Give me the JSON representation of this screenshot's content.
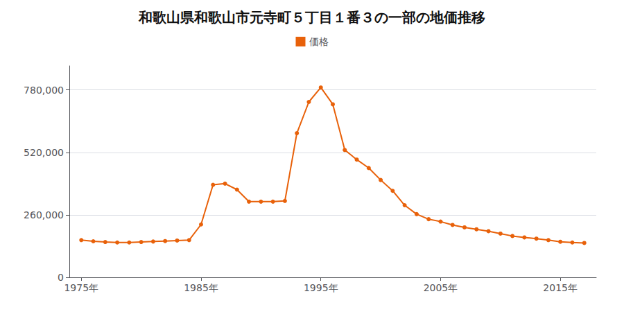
{
  "chart_data": {
    "type": "line",
    "title": "和歌山県和歌山市元寺町５丁目１番３の一部の地価推移",
    "x": [
      1975,
      1976,
      1977,
      1978,
      1979,
      1980,
      1981,
      1982,
      1983,
      1984,
      1985,
      1986,
      1987,
      1988,
      1989,
      1990,
      1991,
      1992,
      1993,
      1994,
      1995,
      1996,
      1997,
      1998,
      1999,
      2000,
      2001,
      2002,
      2003,
      2004,
      2005,
      2006,
      2007,
      2008,
      2009,
      2010,
      2011,
      2012,
      2013,
      2014,
      2015,
      2016,
      2017
    ],
    "series": [
      {
        "name": "価格",
        "color": "#e8610a",
        "marker": "circle",
        "values": [
          155000,
          150000,
          147000,
          145000,
          145000,
          147000,
          149000,
          151000,
          153000,
          155000,
          220000,
          385000,
          390000,
          365000,
          315000,
          315000,
          315000,
          318000,
          600000,
          730000,
          790000,
          720000,
          530000,
          490000,
          455000,
          405000,
          360000,
          300000,
          263000,
          242000,
          232000,
          218000,
          208000,
          200000,
          192000,
          182000,
          172000,
          166000,
          161000,
          155000,
          148000,
          145000,
          143000
        ]
      }
    ],
    "xlim": [
      1974,
      2018
    ],
    "xticks": [
      {
        "value": 1975,
        "label": "1975年"
      },
      {
        "value": 1985,
        "label": "1985年"
      },
      {
        "value": 1995,
        "label": "1995年"
      },
      {
        "value": 2005,
        "label": "2005年"
      },
      {
        "value": 2015,
        "label": "2015年"
      }
    ],
    "ylim": [
      0,
      880000
    ],
    "yticks": [
      0,
      {
        "value": 260000,
        "label": "260,000"
      },
      {
        "value": 520000,
        "label": "520,000"
      },
      {
        "value": 780000,
        "label": "780,000"
      }
    ],
    "grid": true,
    "legend": "top"
  }
}
